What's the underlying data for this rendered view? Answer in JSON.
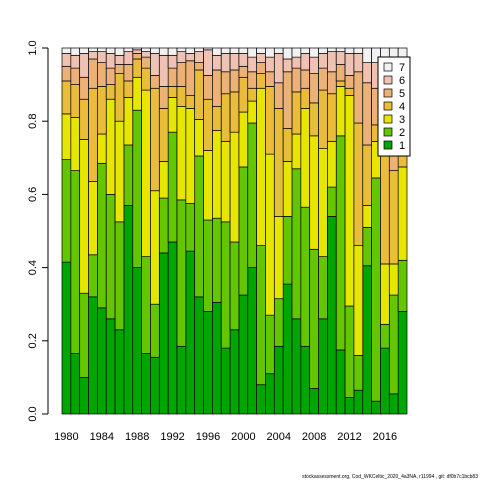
{
  "chart_data": {
    "type": "stacked_bar",
    "categories": [
      "1980",
      null,
      null,
      null,
      "1984",
      null,
      null,
      null,
      "1988",
      null,
      null,
      null,
      "1992",
      null,
      null,
      null,
      "1996",
      null,
      null,
      null,
      "2000",
      null,
      null,
      null,
      "2004",
      null,
      null,
      null,
      "2008",
      null,
      null,
      null,
      "2012",
      null,
      null,
      null,
      "2016",
      null,
      null
    ],
    "series": [
      {
        "name": "1",
        "color": "#00A600",
        "values": [
          0.415,
          0.165,
          0.1,
          0.32,
          0.29,
          0.26,
          0.23,
          0.57,
          0.4,
          0.165,
          0.155,
          0.44,
          0.47,
          0.185,
          0.445,
          0.32,
          0.28,
          0.305,
          0.18,
          0.23,
          0.325,
          0.4,
          0.08,
          0.11,
          0.185,
          0.355,
          0.26,
          0.185,
          0.07,
          0.26,
          0.54,
          0.175,
          0.045,
          0.065,
          0.405,
          0.035,
          0.18,
          0.055,
          0.28
        ]
      },
      {
        "name": "2",
        "color": "#63C600",
        "values": [
          0.28,
          0.5,
          0.23,
          0.115,
          0.395,
          0.34,
          0.295,
          0.165,
          0.43,
          0.265,
          0.145,
          0.15,
          0.3,
          0.4,
          0.13,
          0.385,
          0.25,
          0.23,
          0.345,
          0.24,
          0.35,
          0.395,
          0.38,
          0.16,
          0.13,
          0.185,
          0.41,
          0.38,
          0.38,
          0.17,
          0.08,
          0.585,
          0.25,
          0.095,
          0.105,
          0.61,
          0.065,
          0.27,
          0.14
        ]
      },
      {
        "name": "3",
        "color": "#E6E600",
        "values": [
          0.125,
          0.145,
          0.42,
          0.2,
          0.08,
          0.26,
          0.275,
          0.13,
          0.09,
          0.455,
          0.31,
          0.1,
          0.095,
          0.255,
          0.26,
          0.1,
          0.19,
          0.24,
          0.22,
          0.3,
          0.15,
          0.06,
          0.43,
          0.44,
          0.225,
          0.15,
          0.095,
          0.27,
          0.31,
          0.295,
          0.125,
          0.135,
          0.575,
          0.3,
          0.06,
          0.1,
          0.165,
          0.085,
          0.255
        ]
      },
      {
        "name": "4",
        "color": "#E9BD3A",
        "values": [
          0.09,
          0.09,
          0.11,
          0.255,
          0.13,
          0.04,
          0.13,
          0.045,
          0.05,
          0.06,
          0.28,
          0.145,
          0.03,
          0.055,
          0.035,
          0.135,
          0.14,
          0.065,
          0.13,
          0.11,
          0.095,
          0.035,
          0.04,
          0.185,
          0.295,
          0.09,
          0.115,
          0.055,
          0.09,
          0.16,
          0.13,
          0.015,
          0.02,
          0.335,
          0.165,
          0.045,
          0.34,
          0.255,
          0.145
        ]
      },
      {
        "name": "5",
        "color": "#ECB176",
        "values": [
          0.04,
          0.045,
          0.06,
          0.08,
          0.065,
          0.045,
          0.025,
          0.045,
          0.015,
          0.03,
          0.035,
          0.06,
          0.05,
          0.065,
          0.095,
          0.02,
          0.065,
          0.1,
          0.06,
          0.06,
          0.03,
          0.045,
          0.03,
          0.04,
          0.07,
          0.155,
          0.065,
          0.05,
          0.08,
          0.06,
          0.06,
          0.045,
          0.035,
          0.14,
          0.17,
          0.1,
          0.11,
          0.185,
          0.07
        ]
      },
      {
        "name": "6",
        "color": "#EFC2B3",
        "values": [
          0.035,
          0.035,
          0.065,
          0.02,
          0.03,
          0.04,
          0.025,
          0.035,
          0.01,
          0.015,
          0.06,
          0.085,
          0.035,
          0.03,
          0.02,
          0.03,
          0.07,
          0.04,
          0.05,
          0.045,
          0.035,
          0.04,
          0.025,
          0.04,
          0.08,
          0.035,
          0.03,
          0.045,
          0.045,
          0.04,
          0.055,
          0.035,
          0.06,
          0.05,
          0.055,
          0.07,
          0.095,
          0.085,
          0.075
        ]
      },
      {
        "name": "7",
        "color": "#F2F2F2",
        "values": [
          0.015,
          0.02,
          0.015,
          0.01,
          0.01,
          0.015,
          0.02,
          0.01,
          0.005,
          0.01,
          0.015,
          0.02,
          0.02,
          0.01,
          0.015,
          0.01,
          0.005,
          0.02,
          0.015,
          0.015,
          0.015,
          0.025,
          0.015,
          0.025,
          0.015,
          0.03,
          0.025,
          0.015,
          0.025,
          0.015,
          0.01,
          0.01,
          0.015,
          0.015,
          0.04,
          0.04,
          0.045,
          0.065,
          0.035
        ]
      }
    ],
    "ylim": [
      0,
      1
    ],
    "yticks": [
      {
        "value": 0,
        "label": "0.0"
      },
      0.2,
      0.4,
      0.6,
      0.8,
      {
        "value": 1,
        "label": "1.0"
      }
    ],
    "legend": "top-right",
    "footnote": "stockassessment.org, Cod_WKCeltic_2020_4a3NA, r11994 , git: df0b7c1bcb83"
  }
}
